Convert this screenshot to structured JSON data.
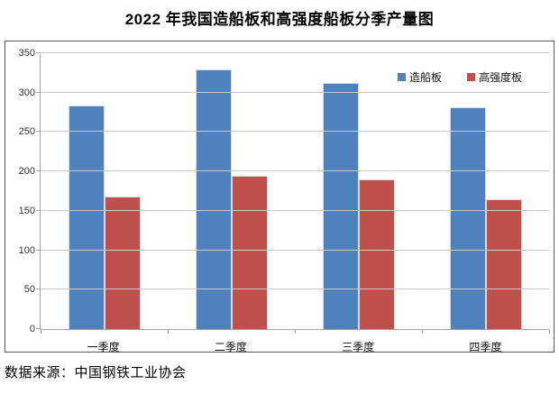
{
  "title": "2022 年我国造船板和高强度船板分季产量图",
  "source": "数据来源：中国钢铁工业协会",
  "colors": {
    "series_blue": "#4F81BD",
    "series_red": "#C0504D",
    "gridline": "#C9C9C9",
    "axis": "#A3A3A3",
    "frame_border": "#595959"
  },
  "chart_data": {
    "type": "bar",
    "categories": [
      "一季度",
      "二季度",
      "三季度",
      "四季度"
    ],
    "series": [
      {
        "name": "造船板",
        "color": "#4F81BD",
        "values": [
          284,
          330,
          312,
          281
        ]
      },
      {
        "name": "高强度板",
        "color": "#C0504D",
        "values": [
          168,
          195,
          190,
          165
        ]
      }
    ],
    "title": "2022 年我国造船板和高强度船板分季产量图",
    "xlabel": "",
    "ylabel": "",
    "ylim": [
      0,
      350
    ],
    "ytick_step": 50,
    "grid": true,
    "legend_position": "top-right"
  }
}
